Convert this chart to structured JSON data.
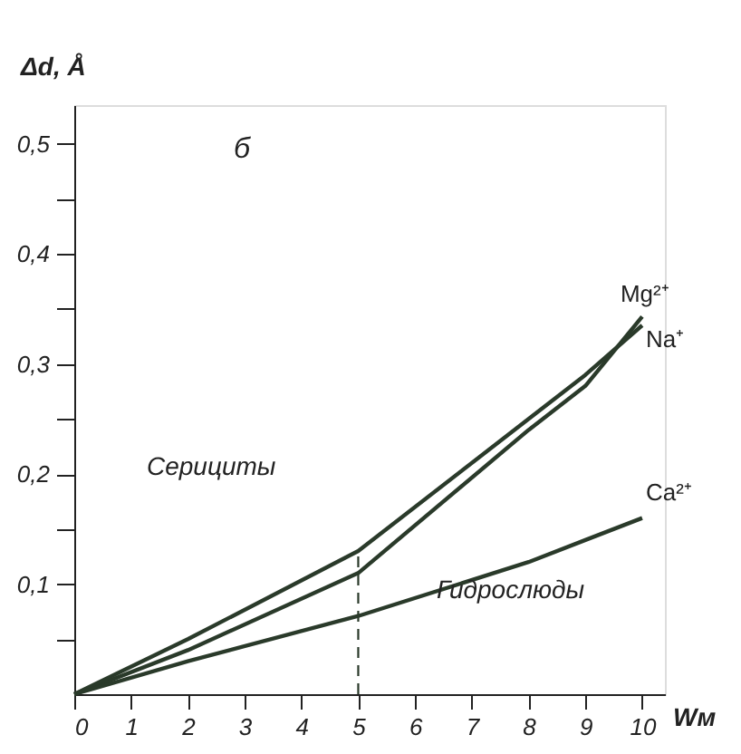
{
  "chart_data": {
    "type": "line",
    "xlabel": "Wм",
    "ylabel": "Δd, Å",
    "x": [
      0,
      2,
      5,
      8,
      9,
      10
    ],
    "series": [
      {
        "name": "Mg²⁺",
        "color": "#2a3a2a",
        "values": [
          0,
          0.04,
          0.11,
          0.24,
          0.28,
          0.343
        ]
      },
      {
        "name": "Na⁺",
        "color": "#2a3a2a",
        "values": [
          0,
          0.05,
          0.13,
          0.25,
          0.29,
          0.335
        ]
      },
      {
        "name": "Ca²⁺",
        "color": "#2a3a2a",
        "values": [
          0,
          0.03,
          0.071,
          0.12,
          0.14,
          0.16
        ]
      },
      {
        "type": "line",
        "line_style": "dashed",
        "color": "#2a3a2a",
        "x": [
          5,
          5
        ],
        "values": [
          0,
          0.13
        ]
      }
    ],
    "annotations": [
      "б",
      "Серициты",
      "Гидрослюды"
    ],
    "xlim": [
      0,
      10.4
    ],
    "xticks": [
      0,
      1,
      2,
      3,
      4,
      5,
      6,
      7,
      8,
      9,
      10
    ],
    "ylim": [
      0,
      0.535
    ],
    "yticks": [
      {
        "value": 0.05,
        "label": null
      },
      {
        "value": 0.1,
        "label": "0,1"
      },
      {
        "value": 0.15,
        "label": null
      },
      {
        "value": 0.2,
        "label": "0,2"
      },
      {
        "value": 0.25,
        "label": null
      },
      {
        "value": 0.3,
        "label": "0,3"
      },
      {
        "value": 0.35,
        "label": null
      },
      {
        "value": 0.4,
        "label": "0,4"
      },
      {
        "value": 0.45,
        "label": null
      },
      {
        "value": 0.5,
        "label": "0,5"
      }
    ],
    "grid": false,
    "marker": "none",
    "line_style": "solid"
  }
}
